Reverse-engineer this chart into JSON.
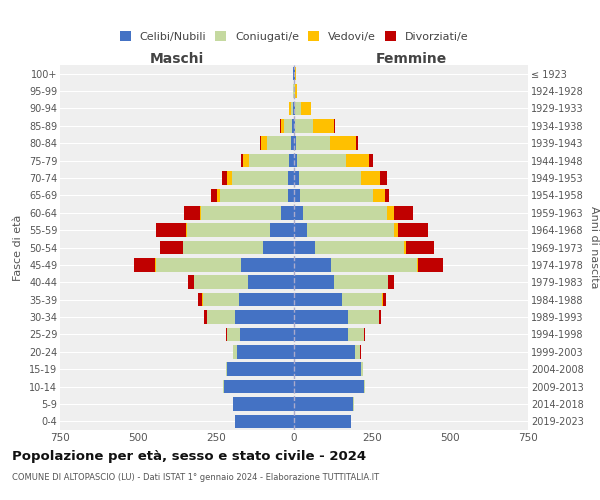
{
  "age_groups": [
    "100+",
    "95-99",
    "90-94",
    "85-89",
    "80-84",
    "75-79",
    "70-74",
    "65-69",
    "60-64",
    "55-59",
    "50-54",
    "45-49",
    "40-44",
    "35-39",
    "30-34",
    "25-29",
    "20-24",
    "15-19",
    "10-14",
    "5-9",
    "0-4"
  ],
  "birth_years": [
    "≤ 1923",
    "1924-1928",
    "1929-1933",
    "1934-1938",
    "1939-1943",
    "1944-1948",
    "1949-1953",
    "1954-1958",
    "1959-1963",
    "1964-1968",
    "1969-1973",
    "1974-1978",
    "1979-1983",
    "1984-1988",
    "1989-1993",
    "1994-1998",
    "1999-2003",
    "2004-2008",
    "2009-2013",
    "2014-2018",
    "2019-2023"
  ],
  "maschi": {
    "celibe": [
      2,
      1,
      3,
      5,
      10,
      15,
      18,
      20,
      42,
      78,
      100,
      170,
      148,
      175,
      190,
      172,
      182,
      215,
      225,
      195,
      190
    ],
    "coniugato": [
      1,
      2,
      8,
      28,
      78,
      128,
      180,
      218,
      255,
      265,
      255,
      272,
      172,
      118,
      90,
      42,
      14,
      4,
      2,
      1,
      0
    ],
    "vedovo": [
      0,
      1,
      4,
      10,
      18,
      20,
      16,
      10,
      5,
      3,
      2,
      2,
      1,
      1,
      0,
      0,
      0,
      0,
      0,
      0,
      0
    ],
    "divorziato": [
      0,
      0,
      1,
      2,
      4,
      7,
      18,
      18,
      52,
      95,
      72,
      68,
      18,
      15,
      8,
      4,
      1,
      0,
      0,
      0,
      0
    ]
  },
  "femmine": {
    "nubile": [
      2,
      1,
      3,
      4,
      8,
      10,
      15,
      18,
      28,
      42,
      68,
      118,
      128,
      155,
      172,
      172,
      195,
      215,
      225,
      190,
      182
    ],
    "coniugata": [
      1,
      3,
      18,
      58,
      108,
      158,
      200,
      235,
      270,
      280,
      285,
      275,
      172,
      128,
      100,
      52,
      18,
      5,
      3,
      1,
      0
    ],
    "vedova": [
      2,
      7,
      32,
      65,
      82,
      72,
      62,
      38,
      22,
      12,
      7,
      4,
      2,
      1,
      0,
      0,
      0,
      0,
      0,
      0,
      0
    ],
    "divorziata": [
      0,
      0,
      2,
      4,
      8,
      12,
      20,
      15,
      62,
      95,
      88,
      82,
      20,
      12,
      6,
      2,
      1,
      0,
      0,
      0,
      0
    ]
  },
  "colors": {
    "celibe": "#4472c4",
    "coniugato": "#c5d9a0",
    "vedovo": "#ffc000",
    "divorziato": "#c00000"
  },
  "xlim": 750,
  "title": "Popolazione per età, sesso e stato civile - 2024",
  "subtitle": "COMUNE DI ALTOPASCIO (LU) - Dati ISTAT 1° gennaio 2024 - Elaborazione TUTTITALIA.IT",
  "legend_labels": [
    "Celibi/Nubili",
    "Coniugati/e",
    "Vedovi/e",
    "Divorziati/e"
  ],
  "background_color": "#efefef"
}
